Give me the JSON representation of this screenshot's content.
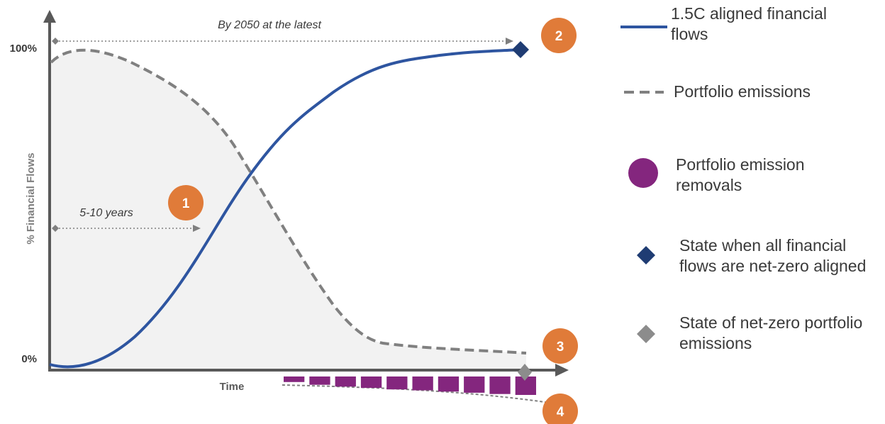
{
  "diagram": {
    "y_axis_title": "% Financial Flows",
    "x_axis_title": "Time",
    "y_tick_top": "100%",
    "y_tick_bottom": "0%",
    "annotation_top": "By 2050 at the latest",
    "annotation_mid": "5-10 years",
    "markers": [
      "1",
      "2",
      "3",
      "4"
    ],
    "removal_bar_levels": [
      0.3,
      0.45,
      0.55,
      0.62,
      0.7,
      0.75,
      0.82,
      0.88,
      0.95,
      1.0
    ]
  },
  "legend": {
    "items": [
      {
        "label_line1": "1.5C aligned financial",
        "label_line2": "flows",
        "swatch": "solid-line"
      },
      {
        "label_line1": "Portfolio emissions",
        "label_line2": "",
        "swatch": "dashed-line"
      },
      {
        "label_line1": "Portfolio emission",
        "label_line2": "removals",
        "swatch": "circle"
      },
      {
        "label_line1": "State when all financial",
        "label_line2": "flows are net-zero aligned",
        "swatch": "diamond"
      },
      {
        "label_line1": "State of net-zero portfolio",
        "label_line2": "emissions",
        "swatch": "diamond"
      }
    ]
  },
  "colors": {
    "blue_line": "#2e55a0",
    "grey_dash": "#808080",
    "area_fill": "#f2f2f2",
    "axis": "#595959",
    "orange": "#e07b39",
    "purple": "#84267e",
    "navy_diamond": "#1f3c73",
    "grey_diamond": "#8c8c8c",
    "text_dark": "#3a3a3a"
  }
}
